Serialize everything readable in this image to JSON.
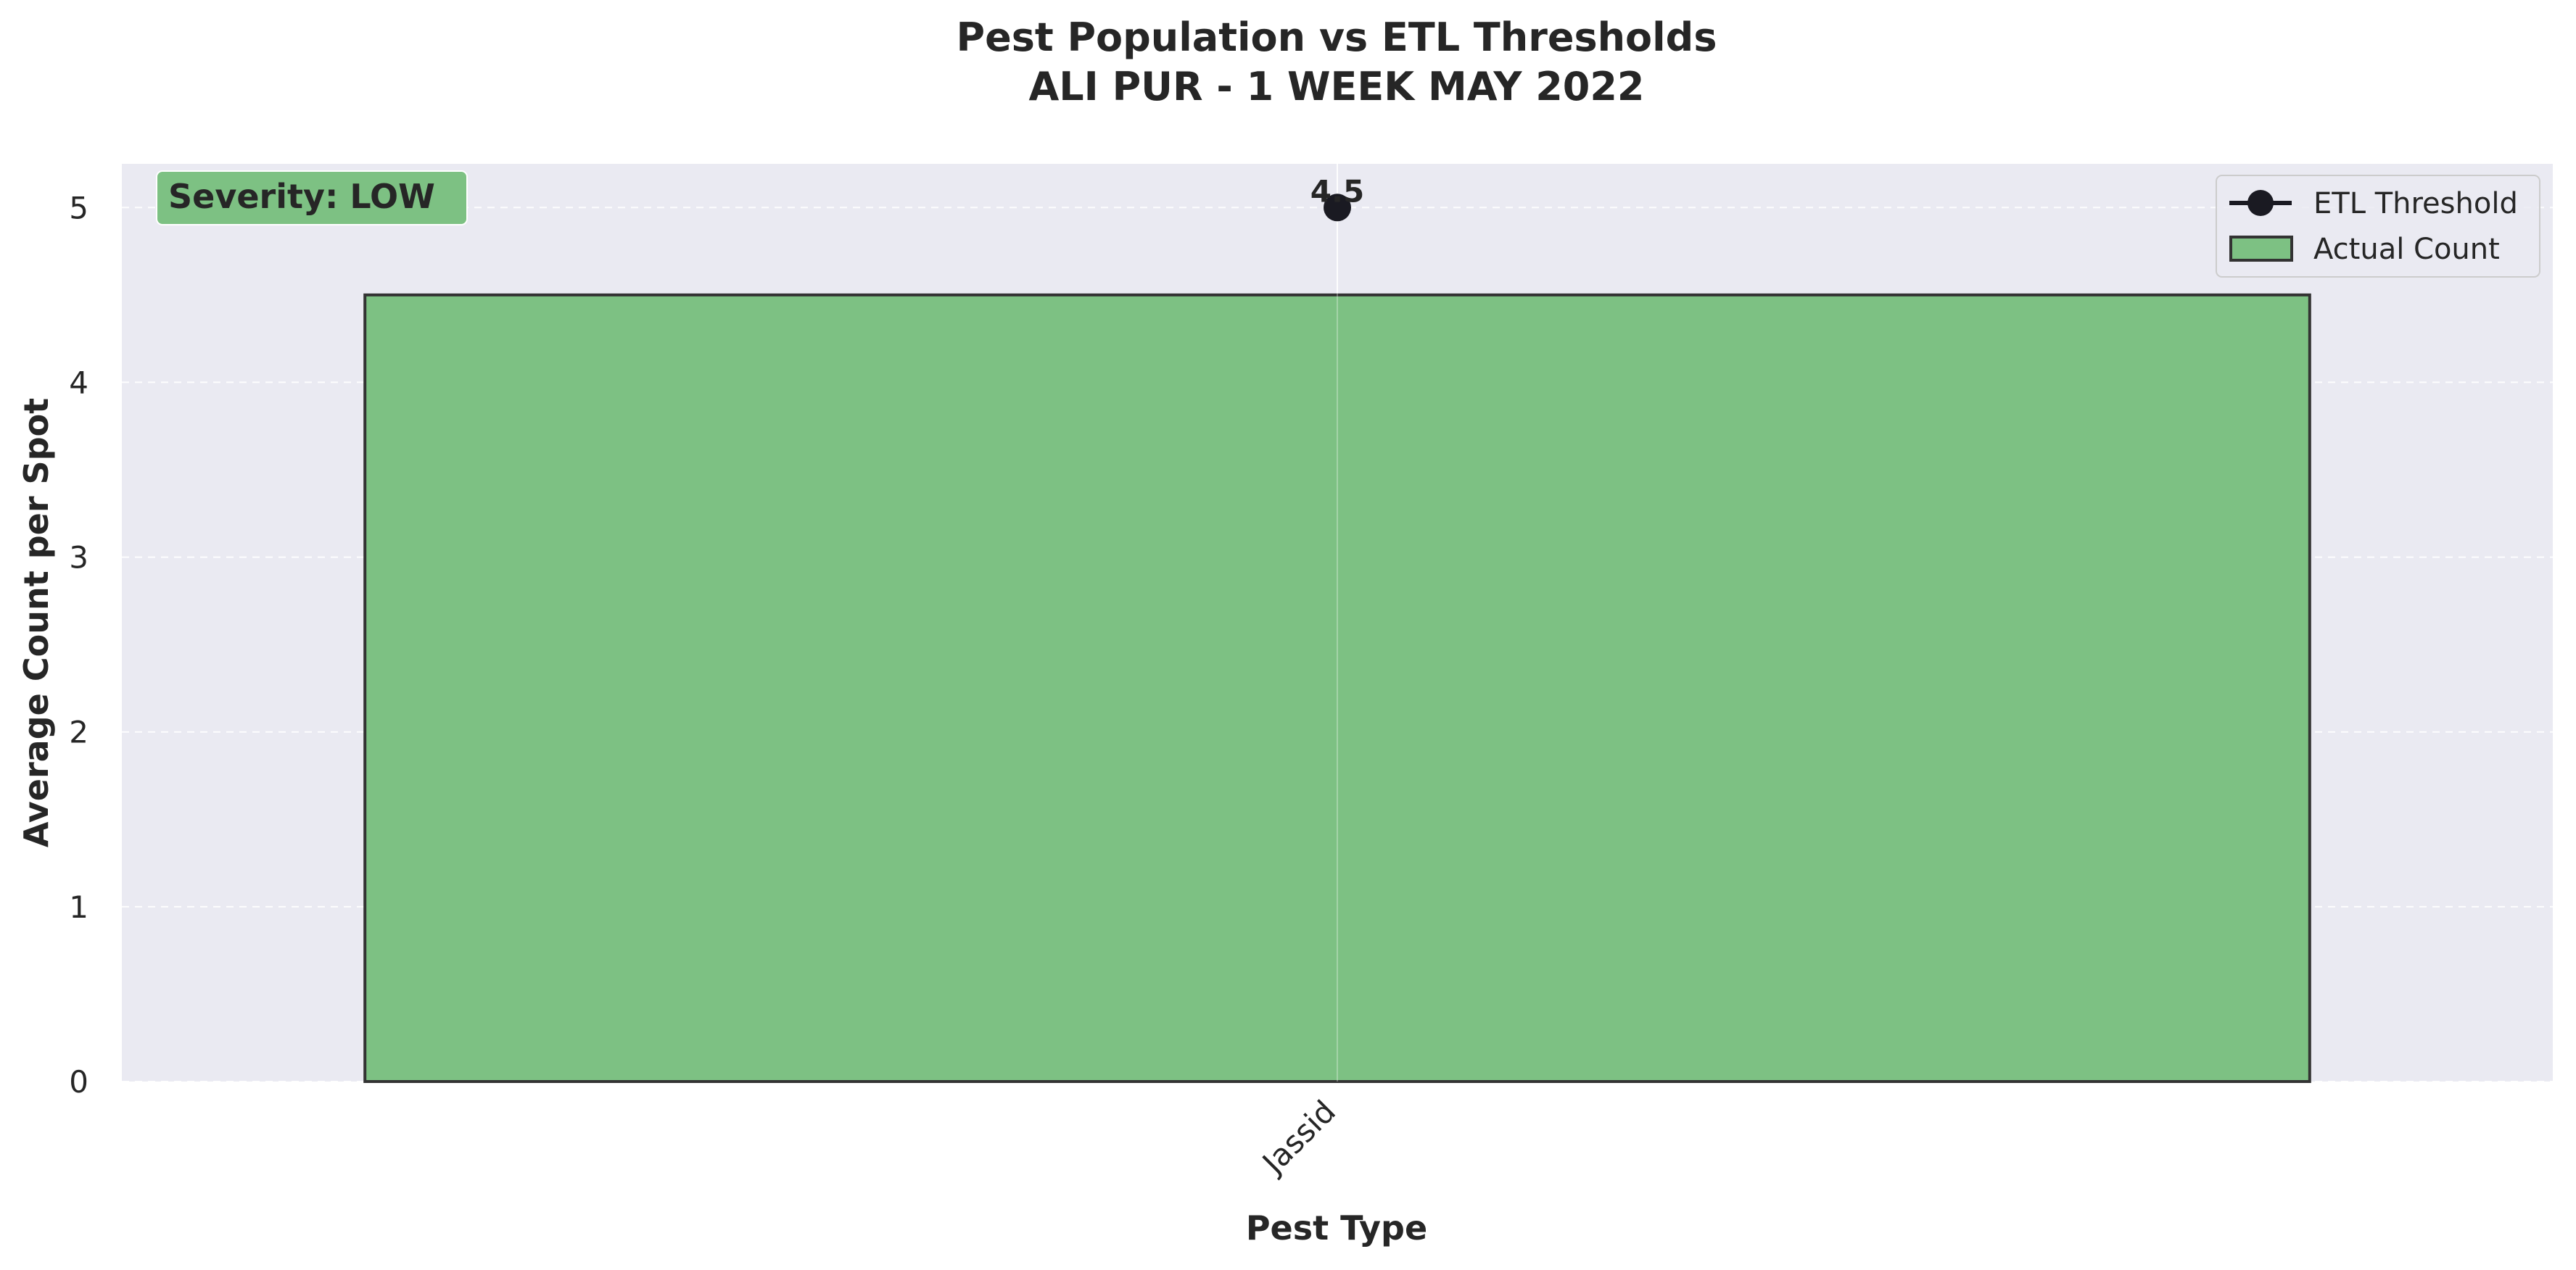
{
  "chart_data": {
    "type": "bar",
    "title": "Pest Population vs ETL Thresholds",
    "subtitle": "ALI PUR - 1 WEEK MAY 2022",
    "xlabel": "Pest Type",
    "ylabel": "Average Count per Spot",
    "categories": [
      "Jassid"
    ],
    "series": [
      {
        "name": "Actual Count",
        "type": "bar",
        "values": [
          4.5
        ],
        "color": "#7dc183"
      },
      {
        "name": "ETL Threshold",
        "type": "marker",
        "values": [
          5
        ],
        "color": "#1a1a22"
      }
    ],
    "data_labels": [
      "4.5"
    ],
    "ylim": [
      0,
      5.25
    ],
    "yticks": [
      0,
      1,
      2,
      3,
      4,
      5
    ],
    "grid": true,
    "legend_position": "top-right",
    "plot_background": "#eaeaf2",
    "annotation": {
      "text": "Severity: LOW",
      "position": "top-left",
      "color": "#7dc183"
    }
  }
}
